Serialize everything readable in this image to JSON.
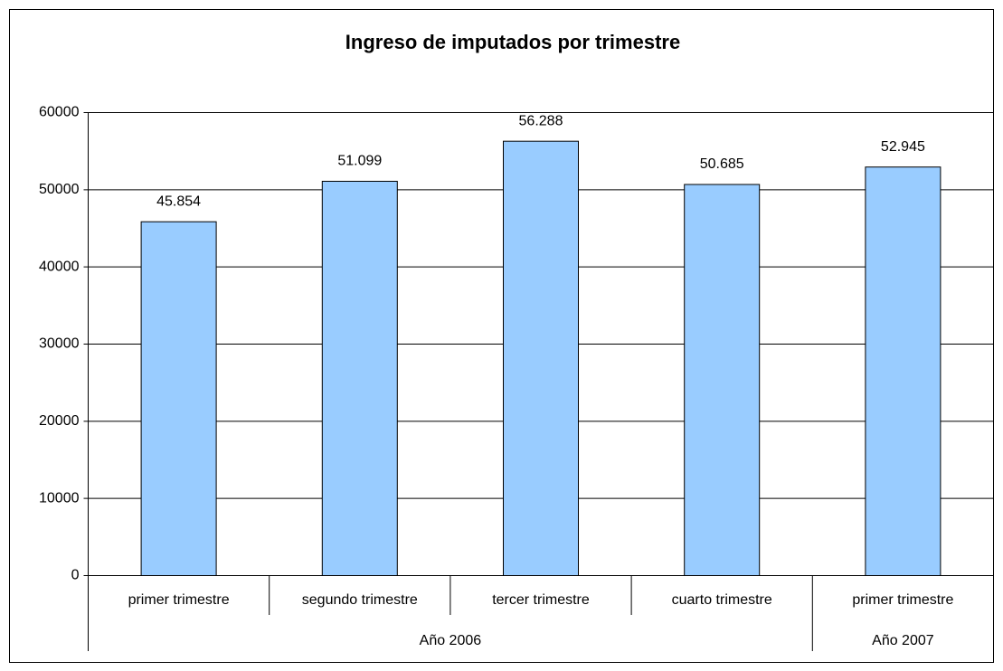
{
  "chart_data": {
    "type": "bar",
    "title": "Ingreso de imputados por trimestre",
    "categories": [
      "primer trimestre",
      "segundo trimestre",
      "tercer trimestre",
      "cuarto trimestre",
      "primer trimestre"
    ],
    "category_groups": [
      "Año 2006",
      "Año 2006",
      "Año 2006",
      "Año 2006",
      "Año 2007"
    ],
    "values": [
      45854,
      51099,
      56288,
      50685,
      52945
    ],
    "value_labels": [
      "45.854",
      "51.099",
      "56.288",
      "50.685",
      "52.945"
    ],
    "color": "#99ccff",
    "ylim": [
      0,
      60000
    ],
    "yticks": [
      0,
      10000,
      20000,
      30000,
      40000,
      50000,
      60000
    ],
    "grid": true
  }
}
